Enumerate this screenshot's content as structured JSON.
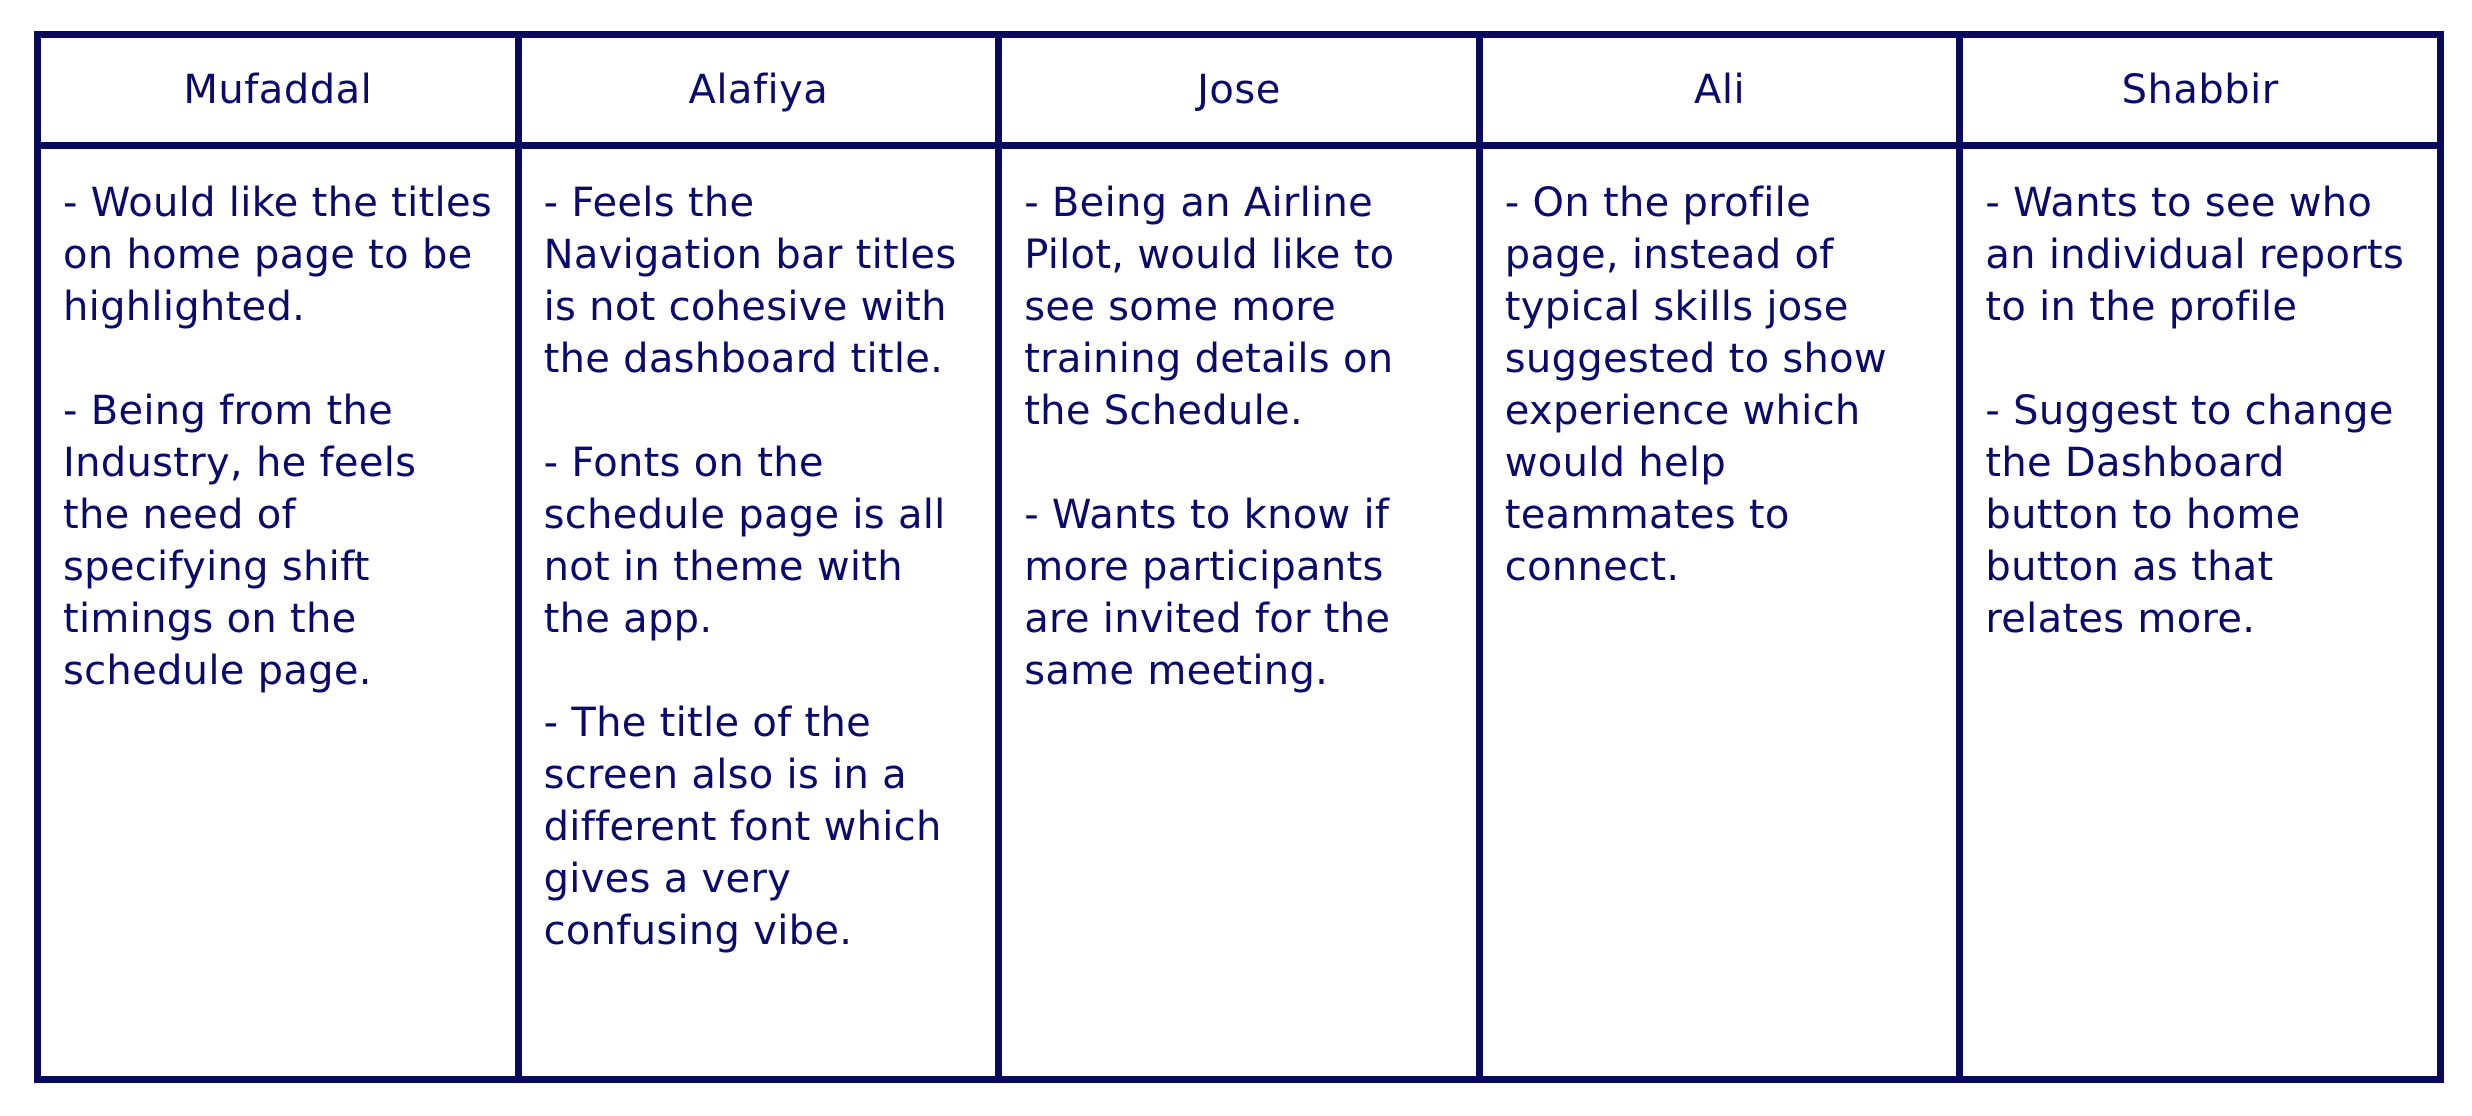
{
  "columns": [
    {
      "name": "Mufaddal",
      "notes": [
        "- Would like the titles on home page to be highlighted.",
        "- Being from the Industry, he feels the need of specifying shift timings on the schedule page."
      ]
    },
    {
      "name": "Alafiya",
      "notes": [
        "- Feels the Navigation bar titles is not cohesive with the dashboard title.",
        "- Fonts on the schedule page is all not in theme with the app.",
        "- The title of the screen also is in a different font which gives a very confusing vibe."
      ]
    },
    {
      "name": "Jose",
      "notes": [
        "- Being an Airline Pilot, would like to see some more training details on the Schedule.",
        "- Wants to know if more participants are invited for the same meeting."
      ]
    },
    {
      "name": "Ali",
      "notes": [
        "- On the profile page, instead of typical skills jose suggested to show experience which would help teammates to connect."
      ]
    },
    {
      "name": "Shabbir",
      "notes": [
        "- Wants to see who an individual reports to in the profile",
        "- Suggest to change the Dashboard button to home button as that relates more."
      ]
    }
  ]
}
